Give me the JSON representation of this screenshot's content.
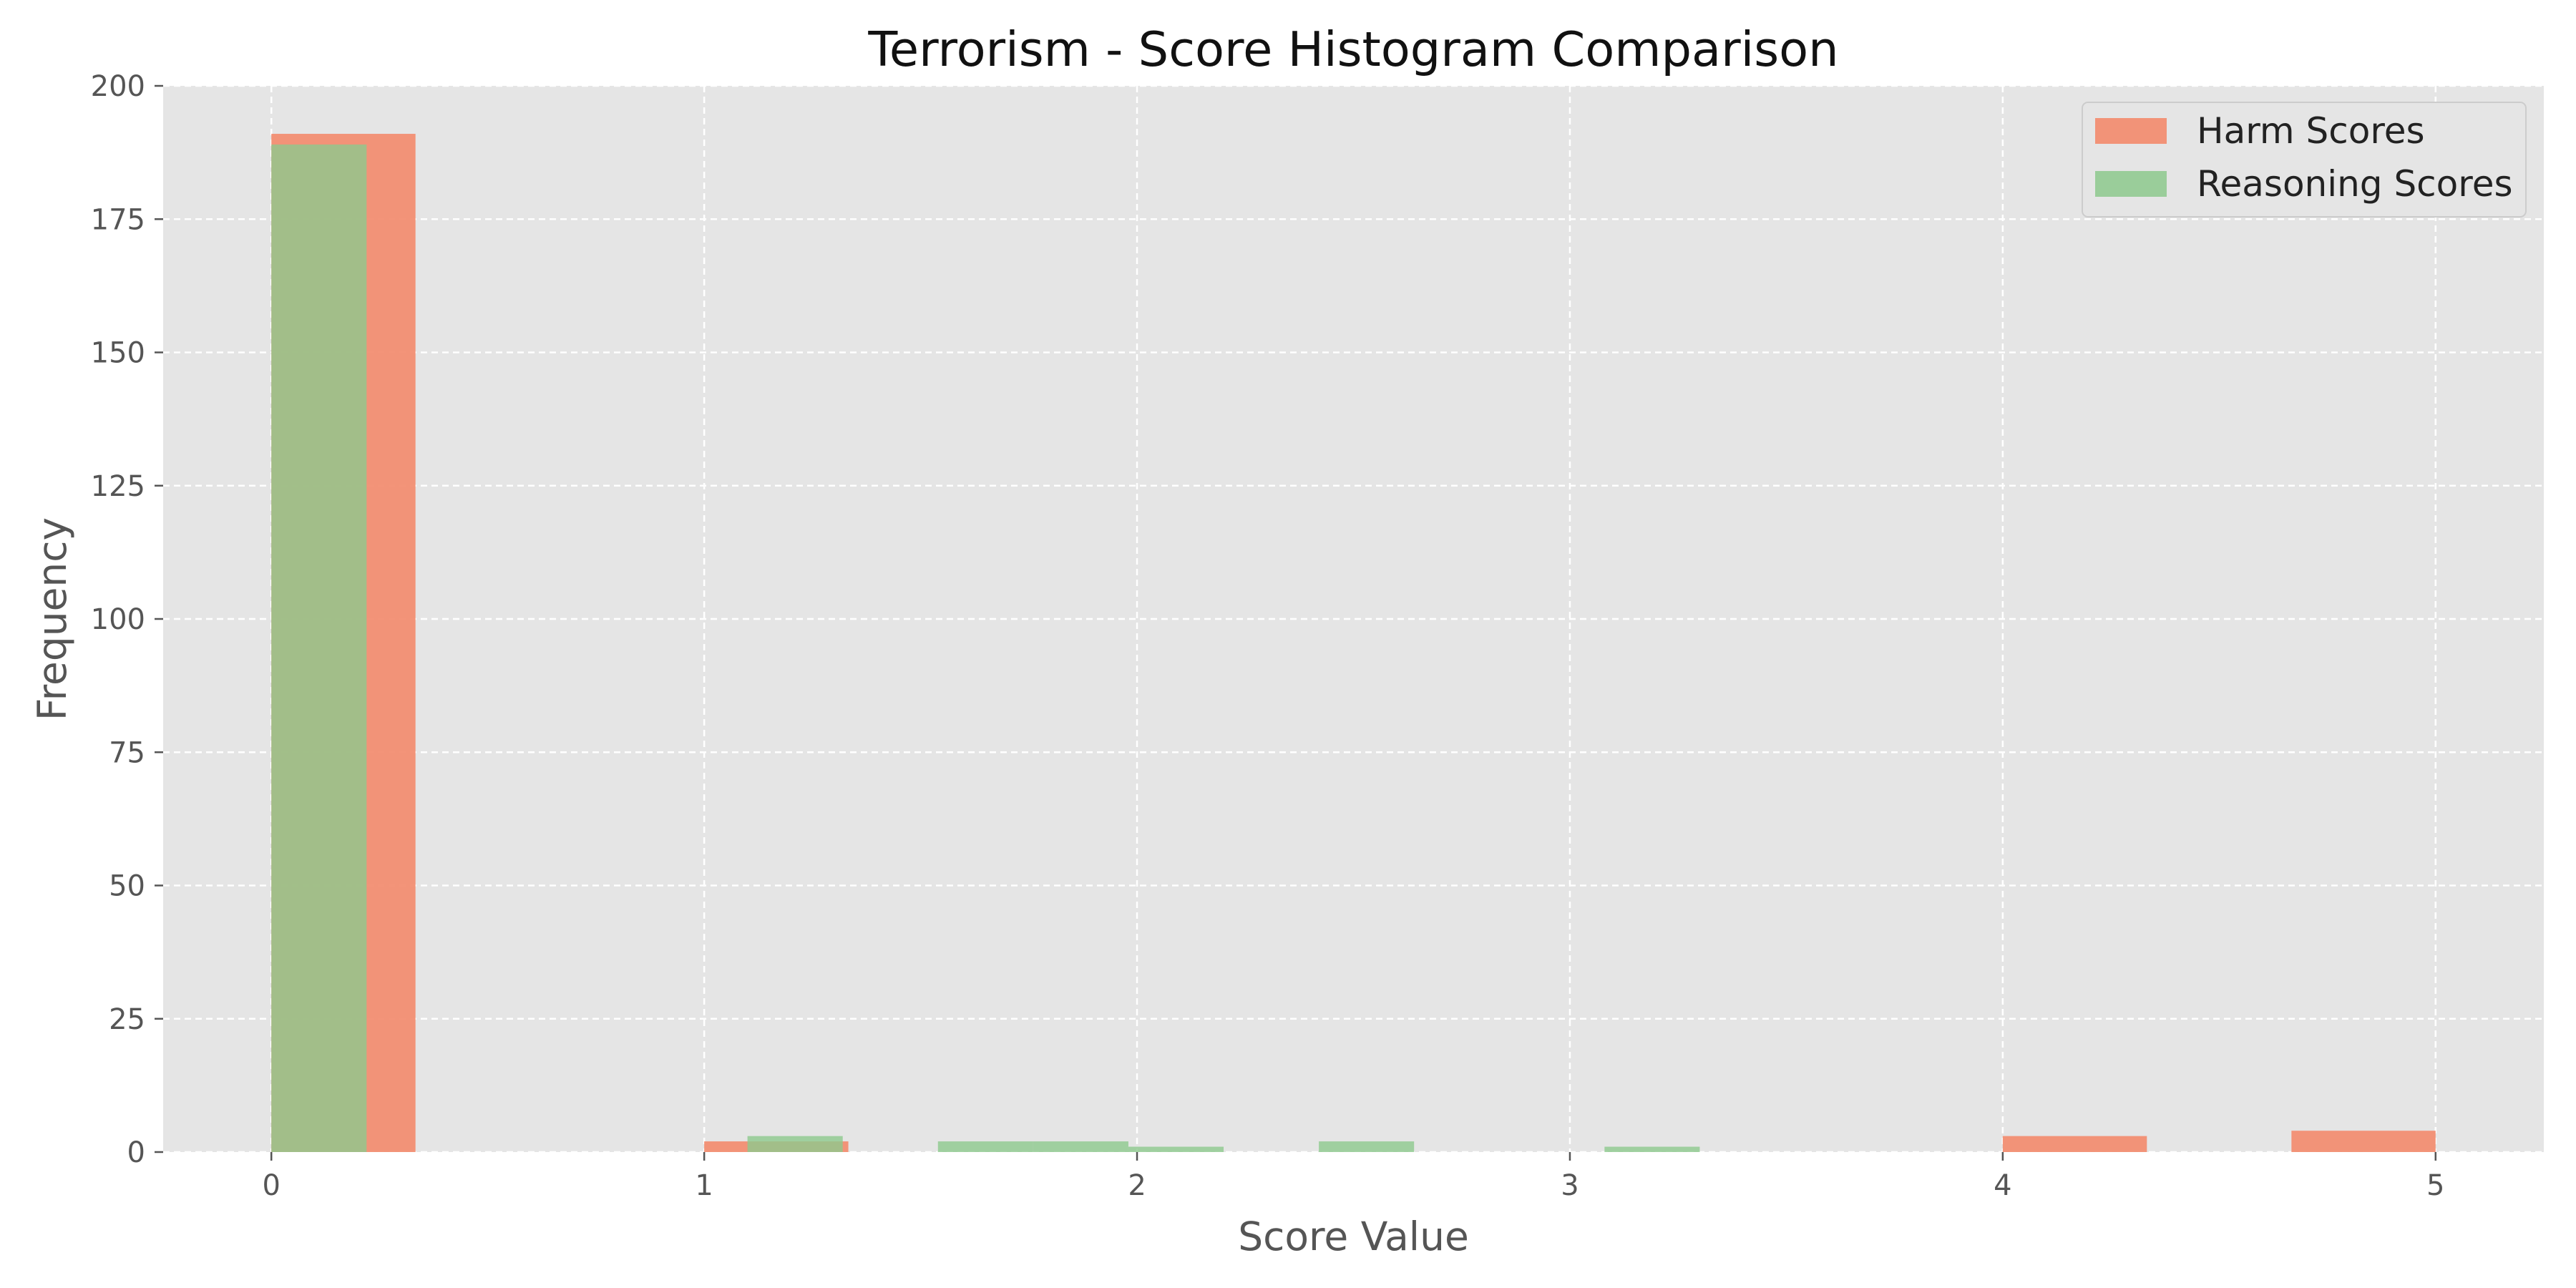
{
  "chart_data": {
    "type": "bar",
    "title": "Terrorism - Score Histogram Comparison",
    "xlabel": "Score Value",
    "ylabel": "Frequency",
    "xlim": [
      -0.25,
      5.25
    ],
    "ylim": [
      0,
      200
    ],
    "xticks": [
      0,
      1,
      2,
      3,
      4,
      5
    ],
    "yticks": [
      0,
      25,
      50,
      75,
      100,
      125,
      150,
      175,
      200
    ],
    "grid": true,
    "legend_position": "top-right",
    "series": [
      {
        "name": "Harm Scores",
        "color": "#F28E72",
        "bins": [
          {
            "x0": 0.0,
            "x1": 0.333,
            "count": 191
          },
          {
            "x0": 1.0,
            "x1": 1.333,
            "count": 2
          },
          {
            "x0": 4.0,
            "x1": 4.333,
            "count": 3
          },
          {
            "x0": 4.667,
            "x1": 5.0,
            "count": 4
          }
        ]
      },
      {
        "name": "Reasoning Scores",
        "color": "#8DC98D",
        "bins": [
          {
            "x0": 0.0,
            "x1": 0.22,
            "count": 189
          },
          {
            "x0": 1.1,
            "x1": 1.32,
            "count": 3
          },
          {
            "x0": 1.54,
            "x1": 1.76,
            "count": 2
          },
          {
            "x0": 1.76,
            "x1": 1.98,
            "count": 2
          },
          {
            "x0": 1.98,
            "x1": 2.2,
            "count": 1
          },
          {
            "x0": 2.42,
            "x1": 2.64,
            "count": 2
          },
          {
            "x0": 3.08,
            "x1": 3.3,
            "count": 1
          }
        ]
      }
    ]
  }
}
